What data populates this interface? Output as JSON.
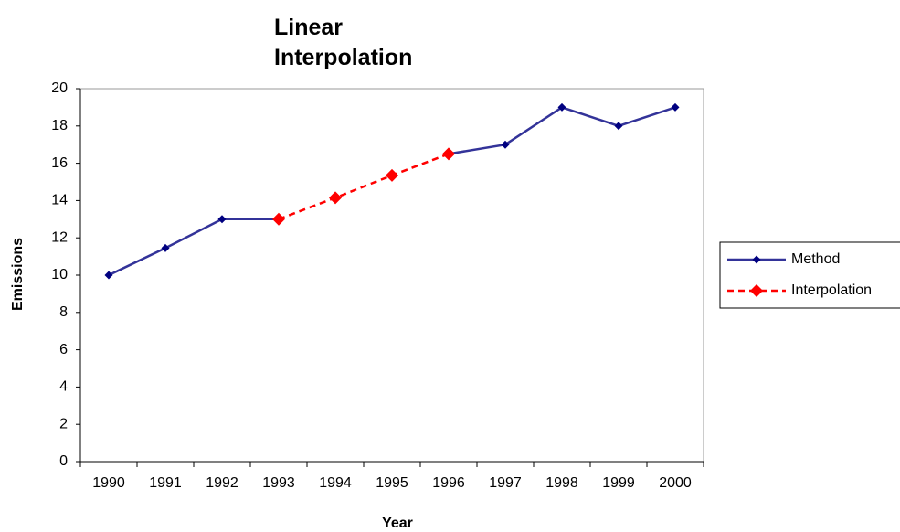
{
  "chart_data": {
    "type": "line",
    "title": "Linear Interpolation",
    "x_label": "Year",
    "y_label": "Emissions",
    "categories": [
      "1990",
      "1991",
      "1992",
      "1993",
      "1994",
      "1995",
      "1996",
      "1997",
      "1998",
      "1999",
      "2000"
    ],
    "series": [
      {
        "name": "Method",
        "color": "#333399",
        "marker_color": "#000080",
        "line_style": "solid",
        "values": [
          10,
          11.45,
          13,
          13,
          null,
          null,
          16.5,
          17,
          19,
          18,
          19
        ]
      },
      {
        "name": "Interpolation",
        "color": "#ff0000",
        "marker_color": "#ff0000",
        "line_style": "dashed",
        "values": [
          null,
          null,
          null,
          13,
          14.15,
          15.35,
          16.5,
          null,
          null,
          null,
          null
        ]
      }
    ],
    "ylim": [
      0,
      20
    ],
    "yticks": [
      0,
      2,
      4,
      6,
      8,
      10,
      12,
      14,
      16,
      18,
      20
    ],
    "grid": false,
    "legend": "right"
  }
}
